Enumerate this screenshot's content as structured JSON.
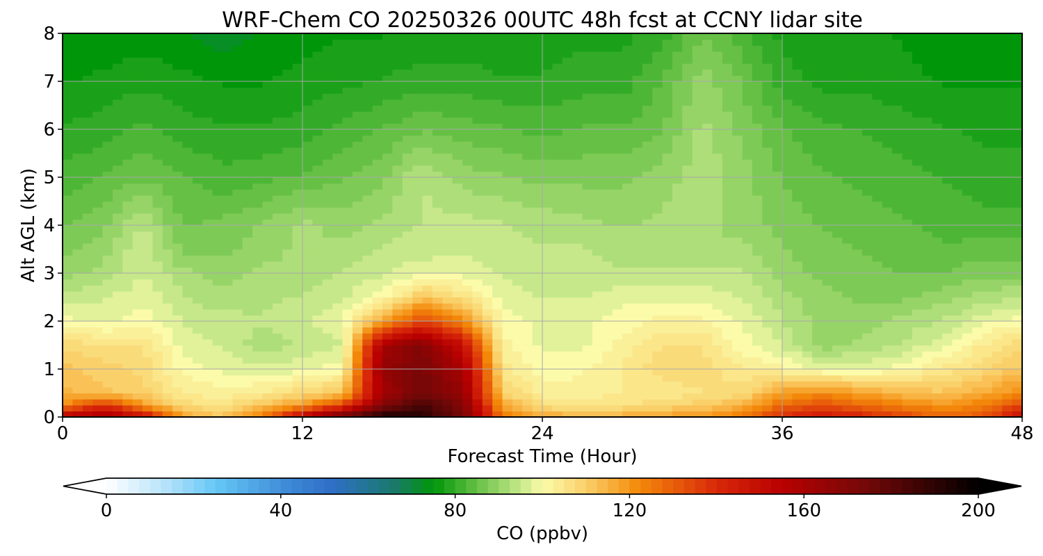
{
  "chart_data": {
    "type": "heatmap",
    "title": "WRF-Chem CO  20250326 00UTC 48h fcst at CCNY lidar site",
    "xlabel": "Forecast Time (Hour)",
    "ylabel": "Alt AGL (km)",
    "xlim": [
      0,
      48
    ],
    "ylim": [
      0,
      8
    ],
    "xticks": [
      0,
      12,
      24,
      36,
      48
    ],
    "yticks": [
      0,
      1,
      2,
      3,
      4,
      5,
      6,
      7,
      8
    ],
    "grid": true,
    "colorbar": {
      "label": "CO  (ppbv)",
      "min": 0,
      "max": 200,
      "ticks": [
        0,
        40,
        80,
        120,
        160,
        200
      ],
      "extend": "both",
      "orientation": "horizontal",
      "placement": "bottom"
    },
    "colormap": [
      {
        "v": 0,
        "c": "#ffffff"
      },
      {
        "v": 12,
        "c": "#bfe6fb"
      },
      {
        "v": 25,
        "c": "#66c8f5"
      },
      {
        "v": 42,
        "c": "#3d88d6"
      },
      {
        "v": 52,
        "c": "#2f6ec6"
      },
      {
        "v": 66,
        "c": "#1a7a6a"
      },
      {
        "v": 75,
        "c": "#00960a"
      },
      {
        "v": 85,
        "c": "#66c045"
      },
      {
        "v": 95,
        "c": "#c6e88a"
      },
      {
        "v": 100,
        "c": "#fbfbaa"
      },
      {
        "v": 110,
        "c": "#fad06a"
      },
      {
        "v": 122,
        "c": "#f48a0a"
      },
      {
        "v": 140,
        "c": "#d8280a"
      },
      {
        "v": 155,
        "c": "#b80000"
      },
      {
        "v": 175,
        "c": "#700808"
      },
      {
        "v": 200,
        "c": "#000000"
      }
    ],
    "x": [
      0,
      2,
      4,
      6,
      8,
      10,
      12,
      14,
      16,
      18,
      20,
      22,
      24,
      26,
      28,
      30,
      32,
      34,
      36,
      38,
      40,
      42,
      44,
      46,
      48
    ],
    "y": [
      0,
      0.25,
      0.5,
      1,
      1.5,
      2,
      2.5,
      3,
      3.5,
      4,
      5,
      6,
      7,
      8
    ],
    "z": [
      [
        158,
        162,
        150,
        118,
        112,
        124,
        155,
        178,
        195,
        190,
        175,
        125,
        118,
        115,
        116,
        118,
        120,
        125,
        140,
        146,
        142,
        135,
        128,
        132,
        150
      ],
      [
        120,
        140,
        120,
        108,
        105,
        112,
        120,
        135,
        170,
        185,
        170,
        118,
        106,
        105,
        106,
        108,
        110,
        115,
        128,
        132,
        128,
        124,
        120,
        124,
        135
      ],
      [
        115,
        112,
        110,
        104,
        102,
        104,
        108,
        112,
        160,
        175,
        165,
        110,
        102,
        102,
        104,
        104,
        106,
        108,
        118,
        122,
        118,
        114,
        112,
        116,
        122
      ],
      [
        112,
        110,
        108,
        100,
        98,
        97,
        98,
        100,
        165,
        172,
        160,
        105,
        100,
        101,
        104,
        108,
        108,
        104,
        102,
        98,
        98,
        100,
        104,
        108,
        112
      ],
      [
        108,
        106,
        106,
        98,
        96,
        92,
        94,
        96,
        160,
        170,
        150,
        102,
        98,
        98,
        102,
        106,
        106,
        100,
        96,
        90,
        92,
        94,
        98,
        104,
        108
      ],
      [
        100,
        98,
        100,
        96,
        95,
        94,
        96,
        98,
        118,
        135,
        122,
        100,
        98,
        98,
        100,
        102,
        102,
        98,
        94,
        90,
        90,
        92,
        94,
        98,
        100
      ],
      [
        94,
        96,
        98,
        94,
        92,
        93,
        94,
        96,
        100,
        112,
        106,
        98,
        96,
        96,
        98,
        98,
        98,
        96,
        92,
        90,
        88,
        88,
        90,
        92,
        94
      ],
      [
        90,
        92,
        96,
        92,
        90,
        92,
        92,
        94,
        96,
        98,
        98,
        96,
        94,
        95,
        94,
        94,
        94,
        94,
        90,
        88,
        87,
        86,
        86,
        88,
        88
      ],
      [
        88,
        90,
        96,
        88,
        88,
        90,
        92,
        92,
        94,
        95,
        96,
        94,
        94,
        94,
        92,
        93,
        92,
        92,
        89,
        87,
        86,
        85,
        84,
        85,
        85
      ],
      [
        86,
        88,
        94,
        86,
        87,
        89,
        92,
        90,
        92,
        94,
        95,
        94,
        93,
        92,
        91,
        92,
        92,
        90,
        88,
        86,
        85,
        84,
        83,
        82,
        82
      ],
      [
        82,
        84,
        86,
        84,
        82,
        83,
        84,
        86,
        88,
        94,
        90,
        89,
        88,
        88,
        88,
        90,
        93,
        90,
        86,
        84,
        83,
        82,
        81,
        80,
        80
      ],
      [
        79,
        80,
        82,
        80,
        79,
        79,
        80,
        82,
        84,
        86,
        85,
        84,
        83,
        84,
        84,
        86,
        92,
        88,
        84,
        82,
        81,
        80,
        79,
        78,
        78
      ],
      [
        76,
        77,
        78,
        77,
        76,
        76,
        77,
        78,
        79,
        80,
        80,
        79,
        79,
        80,
        80,
        84,
        90,
        86,
        80,
        78,
        78,
        77,
        76,
        76,
        76
      ],
      [
        74,
        74,
        75,
        74,
        72,
        74,
        75,
        76,
        76,
        77,
        77,
        77,
        77,
        78,
        78,
        80,
        86,
        82,
        78,
        77,
        77,
        76,
        75,
        74,
        74
      ]
    ]
  }
}
